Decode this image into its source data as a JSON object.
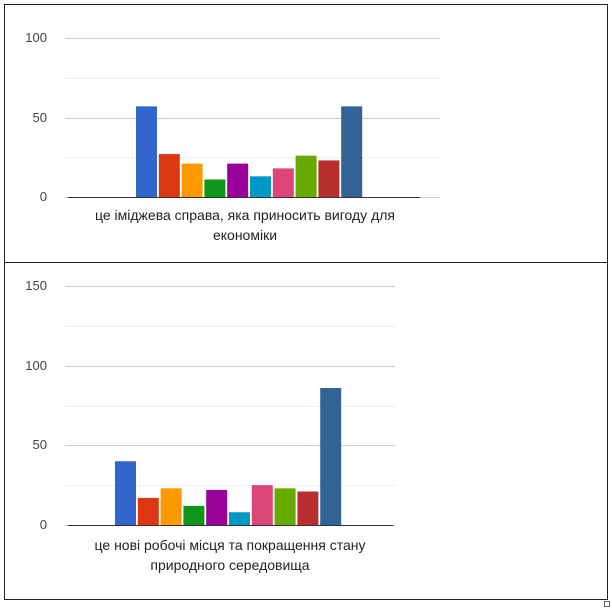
{
  "chart_data": [
    {
      "type": "bar",
      "categories": [
        "це іміджева справа, яка приносить вигоду для економіки"
      ],
      "series": [
        {
          "color": "#3366cc",
          "values": [
            57
          ]
        },
        {
          "color": "#dc3912",
          "values": [
            27
          ]
        },
        {
          "color": "#ff9900",
          "values": [
            21
          ]
        },
        {
          "color": "#109618",
          "values": [
            11
          ]
        },
        {
          "color": "#990099",
          "values": [
            21
          ]
        },
        {
          "color": "#0099c6",
          "values": [
            13
          ]
        },
        {
          "color": "#dd4477",
          "values": [
            18
          ]
        },
        {
          "color": "#66aa00",
          "values": [
            26
          ]
        },
        {
          "color": "#b82e2e",
          "values": [
            23
          ]
        },
        {
          "color": "#316395",
          "values": [
            57
          ]
        }
      ],
      "ylim": [
        0,
        100
      ],
      "yticks": [
        0,
        50,
        100
      ],
      "minor_yticks": [
        25,
        75
      ],
      "grid": true
    },
    {
      "type": "bar",
      "categories": [
        "це нові робочі місця та покращення стану природного середовища"
      ],
      "series": [
        {
          "color": "#3366cc",
          "values": [
            40
          ]
        },
        {
          "color": "#dc3912",
          "values": [
            17
          ]
        },
        {
          "color": "#ff9900",
          "values": [
            23
          ]
        },
        {
          "color": "#109618",
          "values": [
            12
          ]
        },
        {
          "color": "#990099",
          "values": [
            22
          ]
        },
        {
          "color": "#0099c6",
          "values": [
            8
          ]
        },
        {
          "color": "#dd4477",
          "values": [
            25
          ]
        },
        {
          "color": "#66aa00",
          "values": [
            23
          ]
        },
        {
          "color": "#b82e2e",
          "values": [
            21
          ]
        },
        {
          "color": "#316395",
          "values": [
            86
          ]
        }
      ],
      "ylim": [
        0,
        150
      ],
      "yticks": [
        0,
        50,
        100,
        150
      ],
      "minor_yticks": [
        25,
        75,
        125
      ],
      "grid": true
    }
  ]
}
